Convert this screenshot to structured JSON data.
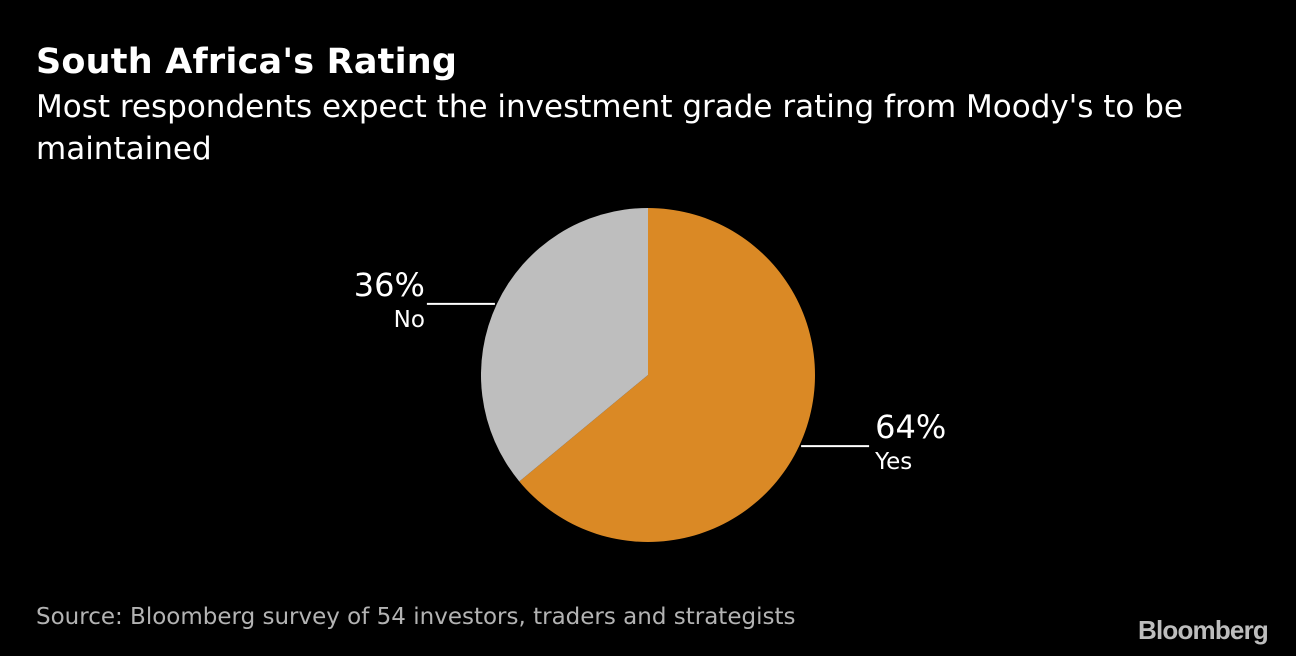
{
  "title": "South Africa's Rating",
  "subtitle": "Most respondents expect the investment grade rating from Moody's to be maintained",
  "source": "Source: Bloomberg survey of 54 investors, traders and strategists",
  "logo": "Bloomberg",
  "colors": {
    "background": "#000000",
    "yes": "#DA8925",
    "no": "#BEBEBE",
    "text": "#FFFFFF"
  },
  "chart_data": {
    "type": "pie",
    "start_angle_deg": 0,
    "direction": "clockwise",
    "slices": [
      {
        "label": "Yes",
        "value": 64,
        "value_label": "64%",
        "color": "#DA8925",
        "label_side": "right"
      },
      {
        "label": "No",
        "value": 36,
        "value_label": "36%",
        "color": "#BEBEBE",
        "label_side": "left"
      }
    ]
  }
}
